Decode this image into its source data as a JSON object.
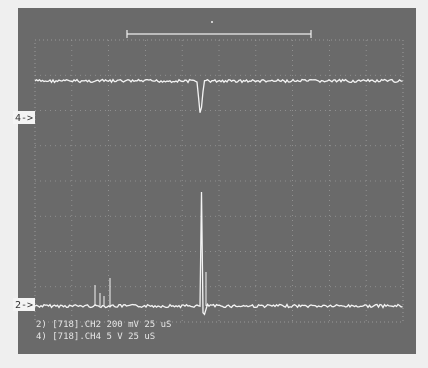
{
  "screen": {
    "markers": [
      "4->",
      "2->"
    ],
    "readouts": [
      "2) [718].CH2  200 mV   25 uS",
      "4) [718].CH4  5 V   25 uS"
    ]
  }
}
